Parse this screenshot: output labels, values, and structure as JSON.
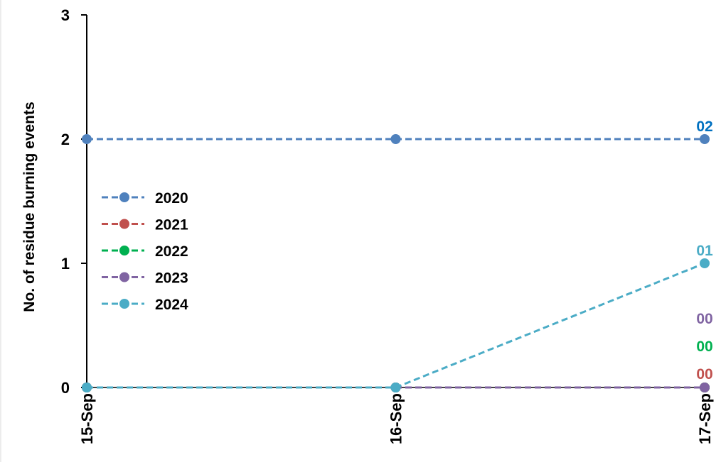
{
  "chart_data": {
    "type": "line",
    "title": "",
    "xlabel": "",
    "ylabel": "No. of residue burning events",
    "categories": [
      "15-Sep",
      "16-Sep",
      "17-Sep"
    ],
    "ylim": [
      0,
      3
    ],
    "yticks": [
      "0",
      "1",
      "2",
      "3"
    ],
    "legend_position": "left",
    "grid": false,
    "series": [
      {
        "name": "2020",
        "values": [
          2,
          2,
          2
        ],
        "color": "#4f81bd",
        "end_label": "02",
        "end_label_color": "#0070c0"
      },
      {
        "name": "2021",
        "values": [
          0,
          0,
          0
        ],
        "color": "#c0504d",
        "end_label": "00",
        "end_label_color": "#c0504d"
      },
      {
        "name": "2022",
        "values": [
          0,
          0,
          0
        ],
        "color": "#00b050",
        "end_label": "00",
        "end_label_color": "#00b050"
      },
      {
        "name": "2023",
        "values": [
          0,
          0,
          0
        ],
        "color": "#8064a2",
        "end_label": "00",
        "end_label_color": "#8064a2"
      },
      {
        "name": "2024",
        "values": [
          0,
          0,
          1
        ],
        "color": "#4bacc6",
        "end_label": "01",
        "end_label_color": "#4bacc6"
      }
    ]
  }
}
